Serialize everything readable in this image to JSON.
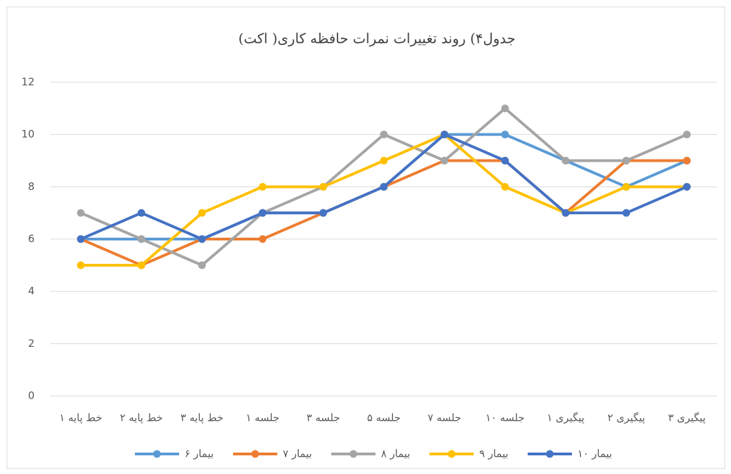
{
  "chart_data": {
    "type": "line",
    "title": "جدول۴) روند تغییرات نمرات حافظه کاری( اکت)",
    "categories": [
      "خط پایه ۱",
      "خط پایه ۲",
      "خط پایه ۳",
      "جلسه ۱",
      "جلسه ۳",
      "جلسه ۵",
      "جلسه ۷",
      "جلسه ۱۰",
      "پیگیری ۱",
      "پیگیری ۲",
      "پیگیری ۳"
    ],
    "series": [
      {
        "name": "بیمار ۶",
        "color": "#5b9bd5",
        "values": [
          6,
          6,
          6,
          7,
          7,
          8,
          10,
          10,
          9,
          8,
          9
        ]
      },
      {
        "name": "بیمار ۷",
        "color": "#ed7d31",
        "values": [
          6,
          5,
          6,
          6,
          7,
          8,
          9,
          9,
          7,
          9,
          9
        ]
      },
      {
        "name": "بیمار ۸",
        "color": "#a5a5a5",
        "values": [
          7,
          6,
          5,
          7,
          8,
          10,
          9,
          11,
          9,
          9,
          10
        ]
      },
      {
        "name": "بیمار ۹",
        "color": "#ffc000",
        "values": [
          5,
          5,
          7,
          8,
          8,
          9,
          10,
          8,
          7,
          8,
          8
        ]
      },
      {
        "name": "بیمار ۱۰",
        "color": "#4472c4",
        "values": [
          6,
          7,
          6,
          7,
          7,
          8,
          10,
          9,
          7,
          7,
          8
        ]
      }
    ],
    "ylim": [
      0,
      12
    ],
    "yticks": [
      0,
      2,
      4,
      6,
      8,
      10,
      12
    ],
    "grid": true,
    "legend": "bottom"
  }
}
